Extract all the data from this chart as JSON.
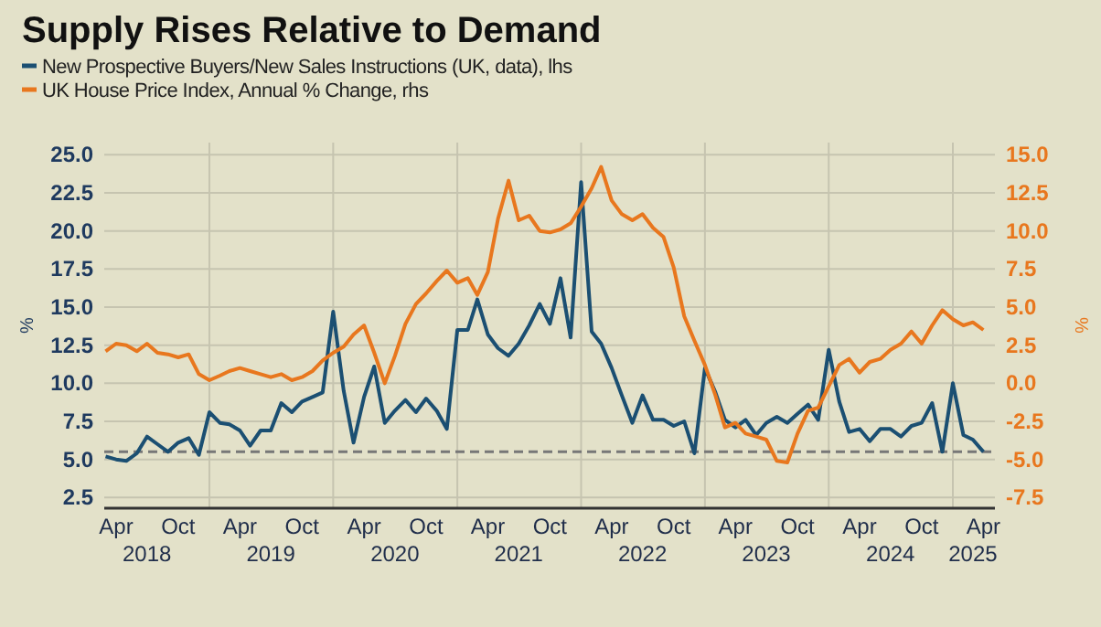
{
  "chart_data": {
    "type": "line",
    "title": "Supply Rises Relative to Demand",
    "ylabel": "%",
    "y2label": "%",
    "x": [
      "2018-03",
      "2018-04",
      "2018-05",
      "2018-06",
      "2018-07",
      "2018-08",
      "2018-09",
      "2018-10",
      "2018-11",
      "2018-12",
      "2019-01",
      "2019-02",
      "2019-03",
      "2019-04",
      "2019-05",
      "2019-06",
      "2019-07",
      "2019-08",
      "2019-09",
      "2019-10",
      "2019-11",
      "2019-12",
      "2020-01",
      "2020-02",
      "2020-03",
      "2020-04",
      "2020-05",
      "2020-06",
      "2020-07",
      "2020-08",
      "2020-09",
      "2020-10",
      "2020-11",
      "2020-12",
      "2021-01",
      "2021-02",
      "2021-03",
      "2021-04",
      "2021-05",
      "2021-06",
      "2021-07",
      "2021-08",
      "2021-09",
      "2021-10",
      "2021-11",
      "2021-12",
      "2022-01",
      "2022-02",
      "2022-03",
      "2022-04",
      "2022-05",
      "2022-06",
      "2022-07",
      "2022-08",
      "2022-09",
      "2022-10",
      "2022-11",
      "2022-12",
      "2023-01",
      "2023-02",
      "2023-03",
      "2023-04",
      "2023-05",
      "2023-06",
      "2023-07",
      "2023-08",
      "2023-09",
      "2023-10",
      "2023-11",
      "2023-12",
      "2024-01",
      "2024-02",
      "2024-03",
      "2024-04",
      "2024-05",
      "2024-06",
      "2024-07",
      "2024-08",
      "2024-09",
      "2024-10",
      "2024-11",
      "2024-12",
      "2025-01",
      "2025-02",
      "2025-03",
      "2025-04"
    ],
    "series": [
      {
        "name": "New Prospective Buyers/New Sales Instructions (UK, data), lhs",
        "color": "#1b4f72",
        "values": [
          5.2,
          5.0,
          4.9,
          5.4,
          6.5,
          6.0,
          5.5,
          6.1,
          6.4,
          5.3,
          8.1,
          7.4,
          7.3,
          6.9,
          5.9,
          6.9,
          6.9,
          8.7,
          8.1,
          8.8,
          9.1,
          9.4,
          14.7,
          9.5,
          6.1,
          9.1,
          11.1,
          7.4,
          8.2,
          8.9,
          8.1,
          9.0,
          8.2,
          7.0,
          13.5,
          13.5,
          15.5,
          13.2,
          12.3,
          11.8,
          12.6,
          13.8,
          15.2,
          13.9,
          16.9,
          13.0,
          23.2,
          13.4,
          12.6,
          11.0,
          9.2,
          7.4,
          9.2,
          7.6,
          7.6,
          7.2,
          7.5,
          5.4,
          11.0,
          9.4,
          7.6,
          7.1,
          7.6,
          6.6,
          7.4,
          7.8,
          7.4,
          8.0,
          8.6,
          7.6,
          12.2,
          8.8,
          6.8,
          7.0,
          6.2,
          7.0,
          7.0,
          6.5,
          7.2,
          7.4,
          8.7,
          5.5,
          10.0,
          6.6,
          6.3,
          5.5
        ]
      },
      {
        "name": "UK House Price Index, Annual % Change, rhs",
        "color": "#e8771e",
        "axis": "y2",
        "values": [
          2.1,
          2.6,
          2.5,
          2.1,
          2.6,
          2.0,
          1.9,
          1.7,
          1.9,
          0.6,
          0.2,
          0.5,
          0.8,
          1.0,
          0.8,
          0.6,
          0.4,
          0.6,
          0.2,
          0.4,
          0.8,
          1.5,
          2.0,
          2.4,
          3.2,
          3.8,
          2.0,
          0.0,
          1.8,
          3.9,
          5.2,
          5.9,
          6.7,
          7.4,
          6.6,
          6.9,
          5.8,
          7.3,
          10.8,
          13.3,
          10.7,
          11.0,
          10.0,
          9.9,
          10.1,
          10.5,
          11.6,
          12.8,
          14.2,
          12.0,
          11.1,
          10.7,
          11.1,
          10.2,
          9.6,
          7.6,
          4.4,
          2.8,
          1.2,
          -0.8,
          -2.9,
          -2.6,
          -3.3,
          -3.5,
          -3.7,
          -5.1,
          -5.2,
          -3.3,
          -1.8,
          -1.6,
          -0.2,
          1.2,
          1.6,
          0.7,
          1.4,
          1.6,
          2.2,
          2.6,
          3.4,
          2.6,
          3.8,
          4.8,
          4.2,
          3.8,
          4.0,
          3.5
        ]
      }
    ],
    "xlim": [
      "2018-02-25",
      "2025-05-05"
    ],
    "xticks": [
      {
        "value": "2018-04",
        "label": "Apr"
      },
      {
        "value": "2018-10",
        "label": "Oct"
      },
      {
        "value": "2019-01",
        "label": null
      },
      {
        "value": "2019-04",
        "label": "Apr"
      },
      {
        "value": "2019-10",
        "label": "Oct"
      },
      {
        "value": "2020-01",
        "label": null
      },
      {
        "value": "2020-04",
        "label": "Apr"
      },
      {
        "value": "2020-10",
        "label": "Oct"
      },
      {
        "value": "2021-01",
        "label": null
      },
      {
        "value": "2021-04",
        "label": "Apr"
      },
      {
        "value": "2021-10",
        "label": "Oct"
      },
      {
        "value": "2022-01",
        "label": null
      },
      {
        "value": "2022-04",
        "label": "Apr"
      },
      {
        "value": "2022-10",
        "label": "Oct"
      },
      {
        "value": "2023-01",
        "label": null
      },
      {
        "value": "2023-04",
        "label": "Apr"
      },
      {
        "value": "2023-10",
        "label": "Oct"
      },
      {
        "value": "2024-01",
        "label": null
      },
      {
        "value": "2024-04",
        "label": "Apr"
      },
      {
        "value": "2024-10",
        "label": "Oct"
      },
      {
        "value": "2025-01",
        "label": null
      },
      {
        "value": "2025-04",
        "label": "Apr"
      }
    ],
    "x2lim": [
      "2018-02-25",
      "2025-05-05"
    ],
    "x2ticks": [
      {
        "value": "2018-07",
        "label": "2018"
      },
      {
        "value": "2019-07",
        "label": "2019"
      },
      {
        "value": "2020-07",
        "label": "2020"
      },
      {
        "value": "2021-07",
        "label": "2021"
      },
      {
        "value": "2022-07",
        "label": "2022"
      },
      {
        "value": "2023-07",
        "label": "2023"
      },
      {
        "value": "2024-07",
        "label": "2024"
      },
      {
        "value": "2025-03",
        "label": "2025"
      }
    ],
    "ylim": [
      1.8,
      25.8
    ],
    "yticks": [
      {
        "value": 2.5,
        "label": "2.5"
      },
      {
        "value": 5,
        "label": "5.0"
      },
      {
        "value": 7.5,
        "label": "7.5"
      },
      {
        "value": 10,
        "label": "10.0"
      },
      {
        "value": 12.5,
        "label": "12.5"
      },
      {
        "value": 15,
        "label": "15.0"
      },
      {
        "value": 17.5,
        "label": "17.5"
      },
      {
        "value": 20,
        "label": "20.0"
      },
      {
        "value": 22.5,
        "label": "22.5"
      },
      {
        "value": 25,
        "label": "25.0"
      }
    ],
    "y2lim": [
      -8.2,
      15.8
    ],
    "y2ticks": [
      {
        "value": -7.5,
        "label": "-7.5"
      },
      {
        "value": -5,
        "label": "-5.0"
      },
      {
        "value": -2.5,
        "label": "-2.5"
      },
      {
        "value": 0,
        "label": "0.0"
      },
      {
        "value": 2.5,
        "label": "2.5"
      },
      {
        "value": 5,
        "label": "5.0"
      },
      {
        "value": 7.5,
        "label": "7.5"
      },
      {
        "value": 10,
        "label": "10.0"
      },
      {
        "value": 12.5,
        "label": "12.5"
      },
      {
        "value": 15,
        "label": "15.0"
      }
    ],
    "ref_lines": [
      {
        "axis": "y",
        "value": 5.5,
        "color": "#777777",
        "line_style": "dashed"
      }
    ],
    "grid": true,
    "legend": "top left",
    "marker": "none",
    "line_style": "solid"
  }
}
